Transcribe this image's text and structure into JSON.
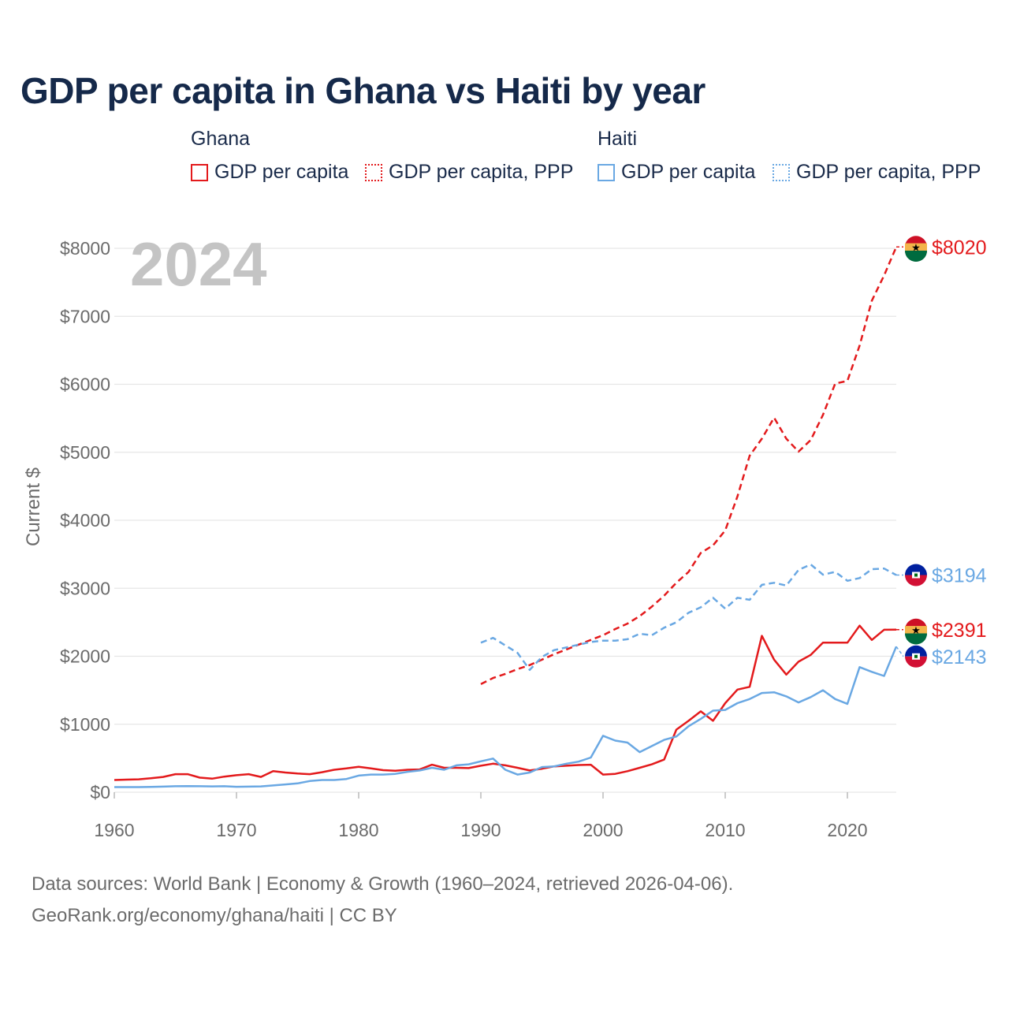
{
  "header": {
    "title": "GDP per capita in Ghana vs Haiti by year"
  },
  "legend": {
    "groups": [
      {
        "title": "Ghana",
        "items": [
          {
            "label": "GDP per capita",
            "color": "#e31a1c",
            "style": "solid"
          },
          {
            "label": "GDP per capita, PPP",
            "color": "#e31a1c",
            "style": "dotted"
          }
        ]
      },
      {
        "title": "Haiti",
        "items": [
          {
            "label": "GDP per capita",
            "color": "#6aa8e3",
            "style": "solid"
          },
          {
            "label": "GDP per capita, PPP",
            "color": "#6aa8e3",
            "style": "dotted"
          }
        ]
      }
    ]
  },
  "footer": {
    "line1": "Data sources: World Bank | Economy & Growth (1960–2024, retrieved 2026-04-06).",
    "line2": "GeoRank.org/economy/ghana/haiti | CC BY"
  },
  "chart_data": {
    "type": "line",
    "title": "GDP per capita in Ghana vs Haiti by year",
    "year_label": "2024",
    "xlabel": "",
    "ylabel": "Current $",
    "xlim": [
      1960,
      2024
    ],
    "ylim": [
      0,
      8000
    ],
    "x_ticks": [
      1960,
      1970,
      1980,
      1990,
      2000,
      2010,
      2020
    ],
    "y_ticks": [
      0,
      1000,
      2000,
      3000,
      4000,
      5000,
      6000,
      7000,
      8000
    ],
    "y_tick_labels": [
      "$0",
      "$1000",
      "$2000",
      "$3000",
      "$4000",
      "$5000",
      "$6000",
      "$7000",
      "$8000"
    ],
    "grid": true,
    "series": [
      {
        "name": "Ghana GDP per capita",
        "country": "Ghana",
        "color": "#e31a1c",
        "dash": "solid",
        "end_label": "$2391",
        "x": [
          1960,
          1961,
          1962,
          1963,
          1964,
          1965,
          1966,
          1967,
          1968,
          1969,
          1970,
          1971,
          1972,
          1973,
          1974,
          1975,
          1976,
          1977,
          1978,
          1979,
          1980,
          1981,
          1982,
          1983,
          1984,
          1985,
          1986,
          1987,
          1988,
          1989,
          1990,
          1991,
          1992,
          1993,
          1994,
          1995,
          1996,
          1997,
          1998,
          1999,
          2000,
          2001,
          2002,
          2003,
          2004,
          2005,
          2006,
          2007,
          2008,
          2009,
          2010,
          2011,
          2012,
          2013,
          2014,
          2015,
          2016,
          2017,
          2018,
          2019,
          2020,
          2021,
          2022,
          2023,
          2024
        ],
        "values": [
          180,
          185,
          190,
          205,
          225,
          265,
          265,
          215,
          200,
          230,
          250,
          265,
          225,
          310,
          290,
          275,
          265,
          295,
          330,
          350,
          375,
          350,
          325,
          315,
          330,
          335,
          405,
          360,
          360,
          355,
          390,
          420,
          395,
          360,
          320,
          345,
          380,
          390,
          400,
          405,
          260,
          270,
          310,
          360,
          410,
          480,
          920,
          1050,
          1190,
          1050,
          1310,
          1510,
          1550,
          2300,
          1950,
          1730,
          1920,
          2020,
          2200,
          2200,
          2200,
          2450,
          2240,
          2390,
          2391
        ]
      },
      {
        "name": "Ghana GDP per capita, PPP",
        "country": "Ghana",
        "color": "#e31a1c",
        "dash": "dashed",
        "end_label": "$8020",
        "x": [
          1990,
          1991,
          1992,
          1993,
          1994,
          1995,
          1996,
          1997,
          1998,
          1999,
          2000,
          2001,
          2002,
          2003,
          2004,
          2005,
          2006,
          2007,
          2008,
          2009,
          2010,
          2011,
          2012,
          2013,
          2014,
          2015,
          2016,
          2017,
          2018,
          2019,
          2020,
          2021,
          2022,
          2023,
          2024
        ],
        "values": [
          1590,
          1680,
          1740,
          1810,
          1870,
          1950,
          2030,
          2100,
          2170,
          2240,
          2310,
          2400,
          2480,
          2590,
          2730,
          2890,
          3080,
          3240,
          3520,
          3630,
          3850,
          4350,
          4950,
          5200,
          5510,
          5200,
          5010,
          5180,
          5550,
          6010,
          6050,
          6570,
          7230,
          7600,
          8020
        ]
      },
      {
        "name": "Haiti GDP per capita",
        "country": "Haiti",
        "color": "#6aa8e3",
        "dash": "solid",
        "end_label": "$2143",
        "x": [
          1960,
          1961,
          1962,
          1963,
          1964,
          1965,
          1966,
          1967,
          1968,
          1969,
          1970,
          1971,
          1972,
          1973,
          1974,
          1975,
          1976,
          1977,
          1978,
          1979,
          1980,
          1981,
          1982,
          1983,
          1984,
          1985,
          1986,
          1987,
          1988,
          1989,
          1990,
          1991,
          1992,
          1993,
          1994,
          1995,
          1996,
          1997,
          1998,
          1999,
          2000,
          2001,
          2002,
          2003,
          2004,
          2005,
          2006,
          2007,
          2008,
          2009,
          2010,
          2011,
          2012,
          2013,
          2014,
          2015,
          2016,
          2017,
          2018,
          2019,
          2020,
          2021,
          2022,
          2023,
          2024
        ],
        "values": [
          75,
          75,
          75,
          78,
          82,
          88,
          90,
          88,
          86,
          88,
          80,
          82,
          86,
          100,
          115,
          130,
          165,
          180,
          180,
          195,
          245,
          260,
          260,
          270,
          300,
          320,
          360,
          330,
          395,
          410,
          455,
          495,
          330,
          260,
          290,
          370,
          380,
          420,
          450,
          510,
          830,
          760,
          730,
          590,
          680,
          770,
          820,
          970,
          1080,
          1200,
          1210,
          1310,
          1370,
          1460,
          1470,
          1410,
          1320,
          1400,
          1500,
          1370,
          1300,
          1840,
          1770,
          1710,
          2143
        ]
      },
      {
        "name": "Haiti GDP per capita, PPP",
        "country": "Haiti",
        "color": "#6aa8e3",
        "dash": "dashed",
        "end_label": "$3194",
        "x": [
          1990,
          1991,
          1992,
          1993,
          1994,
          1995,
          1996,
          1997,
          1998,
          1999,
          2000,
          2001,
          2002,
          2003,
          2004,
          2005,
          2006,
          2007,
          2008,
          2009,
          2010,
          2011,
          2012,
          2013,
          2014,
          2015,
          2016,
          2017,
          2018,
          2019,
          2020,
          2021,
          2022,
          2023,
          2024
        ],
        "values": [
          2200,
          2270,
          2160,
          2050,
          1800,
          1990,
          2090,
          2130,
          2170,
          2210,
          2230,
          2230,
          2250,
          2330,
          2310,
          2420,
          2500,
          2640,
          2720,
          2860,
          2700,
          2860,
          2830,
          3050,
          3080,
          3040,
          3270,
          3350,
          3200,
          3240,
          3110,
          3150,
          3280,
          3290,
          3194
        ]
      }
    ]
  }
}
